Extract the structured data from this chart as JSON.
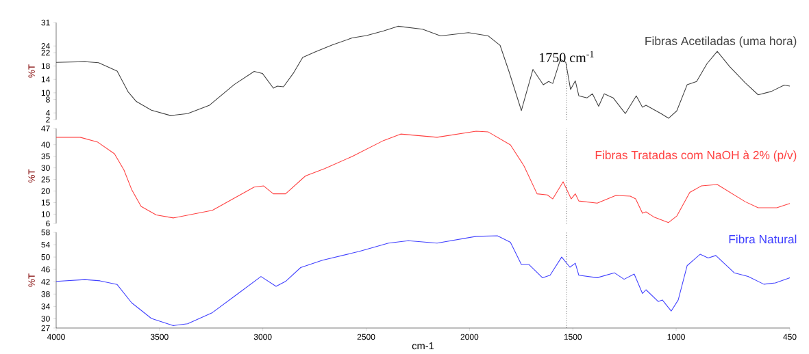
{
  "chart_data": [
    {
      "type": "line",
      "ylabel": "%T",
      "xlim": [
        4000,
        450
      ],
      "ylim": [
        2,
        31
      ],
      "xticks": [
        4000,
        3500,
        3000,
        2500,
        2000,
        1500,
        1000,
        450
      ],
      "yticks": [
        31,
        24,
        22,
        18,
        14,
        10,
        8,
        4,
        2
      ],
      "tick_labels": "y",
      "legend": false,
      "ref_lines": [
        {
          "axis": "x",
          "value": 1530,
          "label": "1750 cm$^{-1}$",
          "line_style": "dotted",
          "color": "#000000"
        }
      ],
      "series": [
        {
          "name": "Fibras Acetiladas (uma hora)",
          "color": "#404040",
          "x": [
            4000,
            3861,
            3795,
            3705,
            3652,
            3612,
            3539,
            3446,
            3364,
            3258,
            3138,
            3042,
            3002,
            2949,
            2930,
            2900,
            2853,
            2807,
            2747,
            2664,
            2568,
            2498,
            2416,
            2346,
            2227,
            2140,
            2005,
            1909,
            1852,
            1809,
            1749,
            1693,
            1643,
            1617,
            1597,
            1560,
            1534,
            1511,
            1488,
            1471,
            1431,
            1405,
            1375,
            1348,
            1305,
            1246,
            1193,
            1163,
            1146,
            1073,
            1037,
            997,
            947,
            901,
            851,
            801,
            742,
            666,
            603,
            540,
            477,
            450
          ],
          "values": [
            19.1,
            19.3,
            19,
            16.5,
            10.3,
            7.4,
            4.8,
            3.2,
            3.8,
            6.3,
            12.5,
            16.4,
            15.8,
            11.4,
            12,
            11.8,
            15.8,
            20.6,
            22.2,
            24.3,
            26.4,
            27.1,
            28.5,
            29.9,
            29,
            27,
            28,
            27,
            24.2,
            16.4,
            4.7,
            17,
            12.4,
            13.4,
            12.8,
            20,
            19.1,
            11,
            13.6,
            9.1,
            8.5,
            9.7,
            6,
            9.7,
            8.5,
            3.8,
            9.1,
            5.7,
            6.3,
            3.8,
            2.4,
            4.6,
            12.4,
            13.4,
            18.7,
            22.4,
            17.9,
            13,
            9.4,
            10.4,
            12.3,
            12
          ]
        }
      ]
    },
    {
      "type": "line",
      "ylabel": "%T",
      "xlim": [
        4000,
        450
      ],
      "ylim": [
        6,
        47
      ],
      "xticks": [
        4000,
        3500,
        3000,
        2500,
        2000,
        1500,
        1000,
        450
      ],
      "yticks": [
        47,
        40,
        35,
        30,
        25,
        20,
        15,
        10,
        6
      ],
      "tick_labels": "y",
      "legend": false,
      "ref_lines": [
        {
          "axis": "x",
          "value": 1530,
          "line_style": "dotted",
          "color": "#000000"
        }
      ],
      "series": [
        {
          "name": "Fibras Tratadas com NaOH à 2% (p/v)",
          "color": "#ff4040",
          "x": [
            4000,
            3884,
            3801,
            3718,
            3672,
            3635,
            3589,
            3516,
            3433,
            3244,
            3042,
            2996,
            2949,
            2890,
            2794,
            2701,
            2568,
            2416,
            2333,
            2157,
            1968,
            1909,
            1802,
            1736,
            1673,
            1623,
            1597,
            1547,
            1508,
            1488,
            1471,
            1382,
            1292,
            1222,
            1196,
            1163,
            1146,
            1106,
            1037,
            997,
            934,
            878,
            801,
            666,
            603,
            513,
            450
          ],
          "values": [
            43.2,
            43.2,
            41.2,
            36.1,
            29.1,
            20.7,
            13.4,
            9.7,
            8.4,
            11.7,
            21.7,
            22.2,
            18.8,
            18.8,
            26.5,
            29.7,
            34.9,
            41.8,
            44.6,
            43.2,
            45.8,
            45.5,
            39.9,
            30.8,
            18.8,
            18.3,
            16.6,
            24,
            16.6,
            18.8,
            15.7,
            14.8,
            18.1,
            17.8,
            16.6,
            10.4,
            11,
            8.7,
            6.4,
            9.2,
            19.4,
            22.2,
            22.8,
            15.4,
            12.8,
            12.8,
            14.6
          ]
        }
      ]
    },
    {
      "type": "line",
      "ylabel": "%T",
      "xlabel": "cm-1",
      "xlim": [
        4000,
        450
      ],
      "ylim": [
        27,
        58
      ],
      "xticks": [
        4000,
        3500,
        3000,
        2500,
        2000,
        1500,
        1000,
        450
      ],
      "yticks": [
        58,
        54,
        50,
        46,
        42,
        38,
        34,
        30,
        27
      ],
      "legend": false,
      "ref_lines": [
        {
          "axis": "x",
          "value": 1530,
          "line_style": "dotted",
          "color": "#000000"
        }
      ],
      "series": [
        {
          "name": "Fibra Natural",
          "color": "#4040ff",
          "x": [
            4000,
            3861,
            3788,
            3705,
            3635,
            3539,
            3433,
            3364,
            3244,
            3125,
            3009,
            2936,
            2890,
            2817,
            2711,
            2535,
            2392,
            2296,
            2157,
            1968,
            1865,
            1802,
            1749,
            1713,
            1647,
            1610,
            1554,
            1514,
            1488,
            1471,
            1382,
            1299,
            1252,
            1203,
            1163,
            1146,
            1087,
            1067,
            1024,
            990,
            947,
            884,
            845,
            808,
            719,
            652,
            576,
            520,
            450
          ],
          "values": [
            42.1,
            42.7,
            42.3,
            41.1,
            35.2,
            30.1,
            27.8,
            28.4,
            32,
            37.9,
            43.7,
            40.5,
            42.1,
            46.6,
            49,
            51.8,
            54.5,
            55.3,
            54.5,
            56.7,
            56.9,
            54.8,
            47.6,
            47.6,
            43.3,
            44.1,
            50,
            46.7,
            48,
            44.1,
            43.3,
            44.9,
            42.8,
            44.5,
            38.2,
            39.4,
            35.6,
            36.1,
            32.5,
            36.1,
            47.2,
            50.9,
            49.7,
            50.5,
            44.9,
            43.7,
            41.2,
            41.6,
            43.3
          ]
        }
      ]
    }
  ]
}
